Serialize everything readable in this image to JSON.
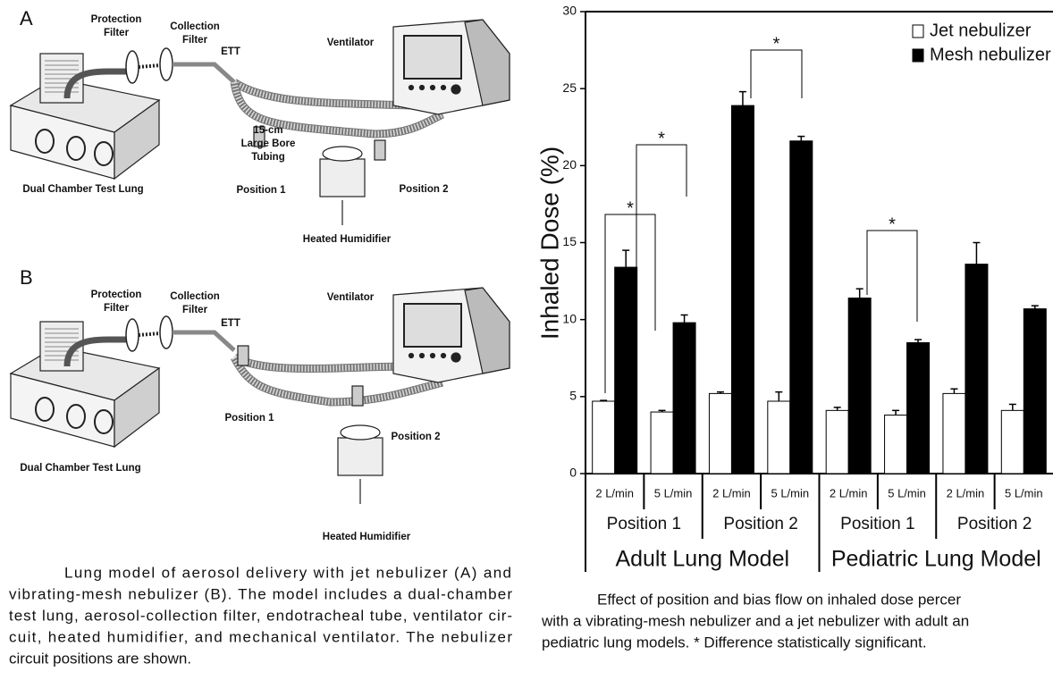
{
  "diagram": {
    "panels": [
      {
        "label": "A",
        "labels": [
          [
            "Protection",
            "Filter"
          ],
          [
            "Collection",
            "Filter"
          ],
          [
            "ETT"
          ],
          [
            "Ventilator"
          ],
          [
            "15-cm",
            "Large Bore",
            "Tubing"
          ],
          [
            "Dual Chamber Test Lung"
          ],
          [
            "Position 1"
          ],
          [
            "Position 2"
          ],
          [
            "Heated Humidifier"
          ]
        ]
      },
      {
        "label": "B",
        "labels": [
          [
            "Protection",
            "Filter"
          ],
          [
            "Collection",
            "Filter"
          ],
          [
            "ETT"
          ],
          [
            "Ventilator"
          ],
          [
            "Position 1"
          ],
          [
            "Position 2"
          ],
          [
            "Dual Chamber Test Lung"
          ],
          [
            "Heated Humidifier"
          ]
        ]
      }
    ],
    "caption": [
      "Lung model of aerosol delivery with jet nebulizer (A) and",
      "vibrating-mesh nebulizer (B). The model includes a dual-chamber",
      "test lung, aerosol-collection filter, endotracheal tube, ventilator cir-",
      "cuit, heated humidifier, and mechanical ventilator. The nebulizer",
      "circuit positions are shown."
    ]
  },
  "chart_data": {
    "type": "bar",
    "ylabel": "Inhaled Dose (%)",
    "categories": [
      "2 L/min",
      "5 L/min",
      "2 L/min",
      "5 L/min",
      "2 L/min",
      "5 L/min",
      "2 L/min",
      "5 L/min"
    ],
    "groups": [
      "Position 1",
      "Position 2",
      "Position 1",
      "Position 2"
    ],
    "supergroups": [
      "Adult Lung Model",
      "Pediatric Lung Model"
    ],
    "series": [
      {
        "name": "Jet nebulizer",
        "color": "#ffffff",
        "values": [
          4.7,
          4.0,
          5.2,
          4.7,
          4.1,
          3.8,
          5.2,
          4.1
        ],
        "errors": [
          0.05,
          0.1,
          0.1,
          0.6,
          0.2,
          0.3,
          0.3,
          0.4
        ]
      },
      {
        "name": "Mesh nebulizer",
        "color": "#000000",
        "values": [
          13.4,
          9.8,
          23.9,
          21.6,
          11.4,
          8.5,
          13.6,
          10.7
        ],
        "errors": [
          1.1,
          0.5,
          0.9,
          0.3,
          0.6,
          0.2,
          1.4,
          0.2
        ]
      }
    ],
    "ylim": [
      0,
      30
    ],
    "yticks": [
      0,
      5,
      10,
      15,
      20,
      25,
      30
    ],
    "grid": false,
    "legend": "upper right",
    "annotations": [
      "*",
      "*",
      "*",
      "*"
    ],
    "caption": [
      "Effect of position and bias flow on inhaled dose percer",
      "with a vibrating-mesh nebulizer and a jet nebulizer with adult an",
      "pediatric lung models. * Difference statistically significant."
    ]
  }
}
